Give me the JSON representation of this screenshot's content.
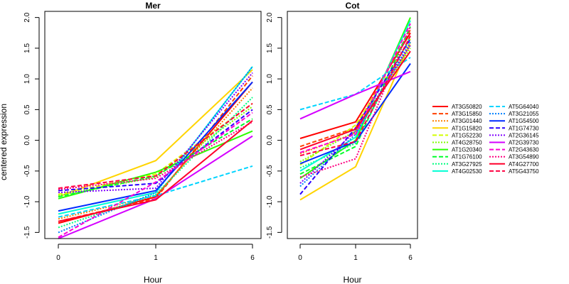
{
  "chart_data": {
    "type": "line",
    "ylabel": "centered expression",
    "xlabel": "Hour",
    "x": [
      0,
      1,
      6
    ],
    "x_tick_labels": [
      "0",
      "1",
      "6"
    ],
    "ylim": [
      -1.6,
      2.1
    ],
    "y_ticks": [
      -1.5,
      -1.0,
      -0.5,
      0.0,
      0.5,
      1.0,
      1.5,
      2.0
    ],
    "y_tick_labels": [
      "-1.5",
      "-1.0",
      "-0.5",
      "0.0",
      "0.5",
      "1.0",
      "1.5",
      "2.0"
    ],
    "grid": false,
    "legend_position": "right",
    "series": [
      {
        "name": "AT3G50820",
        "color": "#ff0000",
        "dash": "solid",
        "mer": [
          -1.35,
          -0.92,
          0.95
        ],
        "cot": [
          0.03,
          0.3,
          1.75
        ]
      },
      {
        "name": "AT3G15850",
        "color": "#ff4000",
        "dash": "dashed",
        "mer": [
          -1.32,
          -0.95,
          1.05
        ],
        "cot": [
          -0.1,
          0.2,
          1.8
        ]
      },
      {
        "name": "AT3G01440",
        "color": "#ff8000",
        "dash": "dotted",
        "mer": [
          -1.28,
          -0.9,
          0.85
        ],
        "cot": [
          -0.22,
          0.12,
          1.55
        ]
      },
      {
        "name": "AT1G15820",
        "color": "#ffd400",
        "dash": "solid",
        "mer": [
          -0.92,
          -0.33,
          1.15
        ],
        "cot": [
          -0.97,
          -0.43,
          1.6
        ]
      },
      {
        "name": "AT1G52230",
        "color": "#d4ff00",
        "dash": "dashed",
        "mer": [
          -0.88,
          -0.55,
          0.6
        ],
        "cot": [
          -0.4,
          0.25,
          1.65
        ]
      },
      {
        "name": "AT4G28750",
        "color": "#80ff00",
        "dash": "dotted",
        "mer": [
          -0.9,
          -0.6,
          0.55
        ],
        "cot": [
          -0.35,
          0.15,
          1.5
        ]
      },
      {
        "name": "AT1G20340",
        "color": "#2bff00",
        "dash": "solid",
        "mer": [
          -0.95,
          -0.52,
          0.15
        ],
        "cot": [
          -0.62,
          0.0,
          2.0
        ]
      },
      {
        "name": "AT1G76100",
        "color": "#00ff2b",
        "dash": "dashed",
        "mer": [
          -0.92,
          -0.58,
          0.35
        ],
        "cot": [
          -0.55,
          -0.1,
          1.85
        ]
      },
      {
        "name": "AT3G27925",
        "color": "#00ff80",
        "dash": "dotted",
        "mer": [
          -1.42,
          -0.88,
          0.7
        ],
        "cot": [
          -0.45,
          -0.05,
          1.7
        ]
      },
      {
        "name": "AT4G02530",
        "color": "#00ffd4",
        "dash": "solid",
        "mer": [
          -1.2,
          -0.85,
          1.2
        ],
        "cot": [
          -0.5,
          0.05,
          1.95
        ]
      },
      {
        "name": "AT5G64040",
        "color": "#00d4ff",
        "dash": "dashed",
        "mer": [
          -1.25,
          -0.9,
          -0.42
        ],
        "cot": [
          0.5,
          0.75,
          1.35
        ]
      },
      {
        "name": "AT3G21055",
        "color": "#0080ff",
        "dash": "dotted",
        "mer": [
          -1.5,
          -0.85,
          1.2
        ],
        "cot": [
          -0.75,
          0.1,
          1.6
        ]
      },
      {
        "name": "AT1G54500",
        "color": "#002bff",
        "dash": "solid",
        "mer": [
          -1.15,
          -0.82,
          0.95
        ],
        "cot": [
          -0.38,
          -0.02,
          1.25
        ]
      },
      {
        "name": "AT1G74730",
        "color": "#2b00ff",
        "dash": "dashed",
        "mer": [
          -0.82,
          -0.7,
          0.5
        ],
        "cot": [
          -0.88,
          0.2,
          1.65
        ]
      },
      {
        "name": "AT2G36145",
        "color": "#8000ff",
        "dash": "dotted",
        "mer": [
          -0.85,
          -0.78,
          1.1
        ],
        "cot": [
          -0.7,
          0.15,
          1.55
        ]
      },
      {
        "name": "AT2G39730",
        "color": "#d400ff",
        "dash": "solid",
        "mer": [
          -1.6,
          -0.95,
          0.07
        ],
        "cot": [
          0.35,
          0.75,
          1.12
        ]
      },
      {
        "name": "AT2G43630",
        "color": "#ff00d4",
        "dash": "dashed",
        "mer": [
          -1.58,
          -0.68,
          0.45
        ],
        "cot": [
          -0.2,
          0.1,
          1.9
        ]
      },
      {
        "name": "AT3G54890",
        "color": "#ff0080",
        "dash": "dotted",
        "mer": [
          -0.8,
          -0.62,
          0.3
        ],
        "cot": [
          -0.6,
          -0.3,
          1.85
        ]
      },
      {
        "name": "AT4G27700",
        "color": "#ff002b",
        "dash": "solid",
        "mer": [
          -1.32,
          -0.97,
          0.32
        ],
        "cot": [
          -0.15,
          0.18,
          1.45
        ]
      },
      {
        "name": "AT5G43750",
        "color": "#ff0040",
        "dash": "dashed",
        "mer": [
          -0.78,
          -0.58,
          0.6
        ],
        "cot": [
          -0.25,
          -0.02,
          1.7
        ]
      }
    ],
    "panels": [
      {
        "title": "Mer",
        "key": "mer"
      },
      {
        "title": "Cot",
        "key": "cot"
      }
    ]
  }
}
